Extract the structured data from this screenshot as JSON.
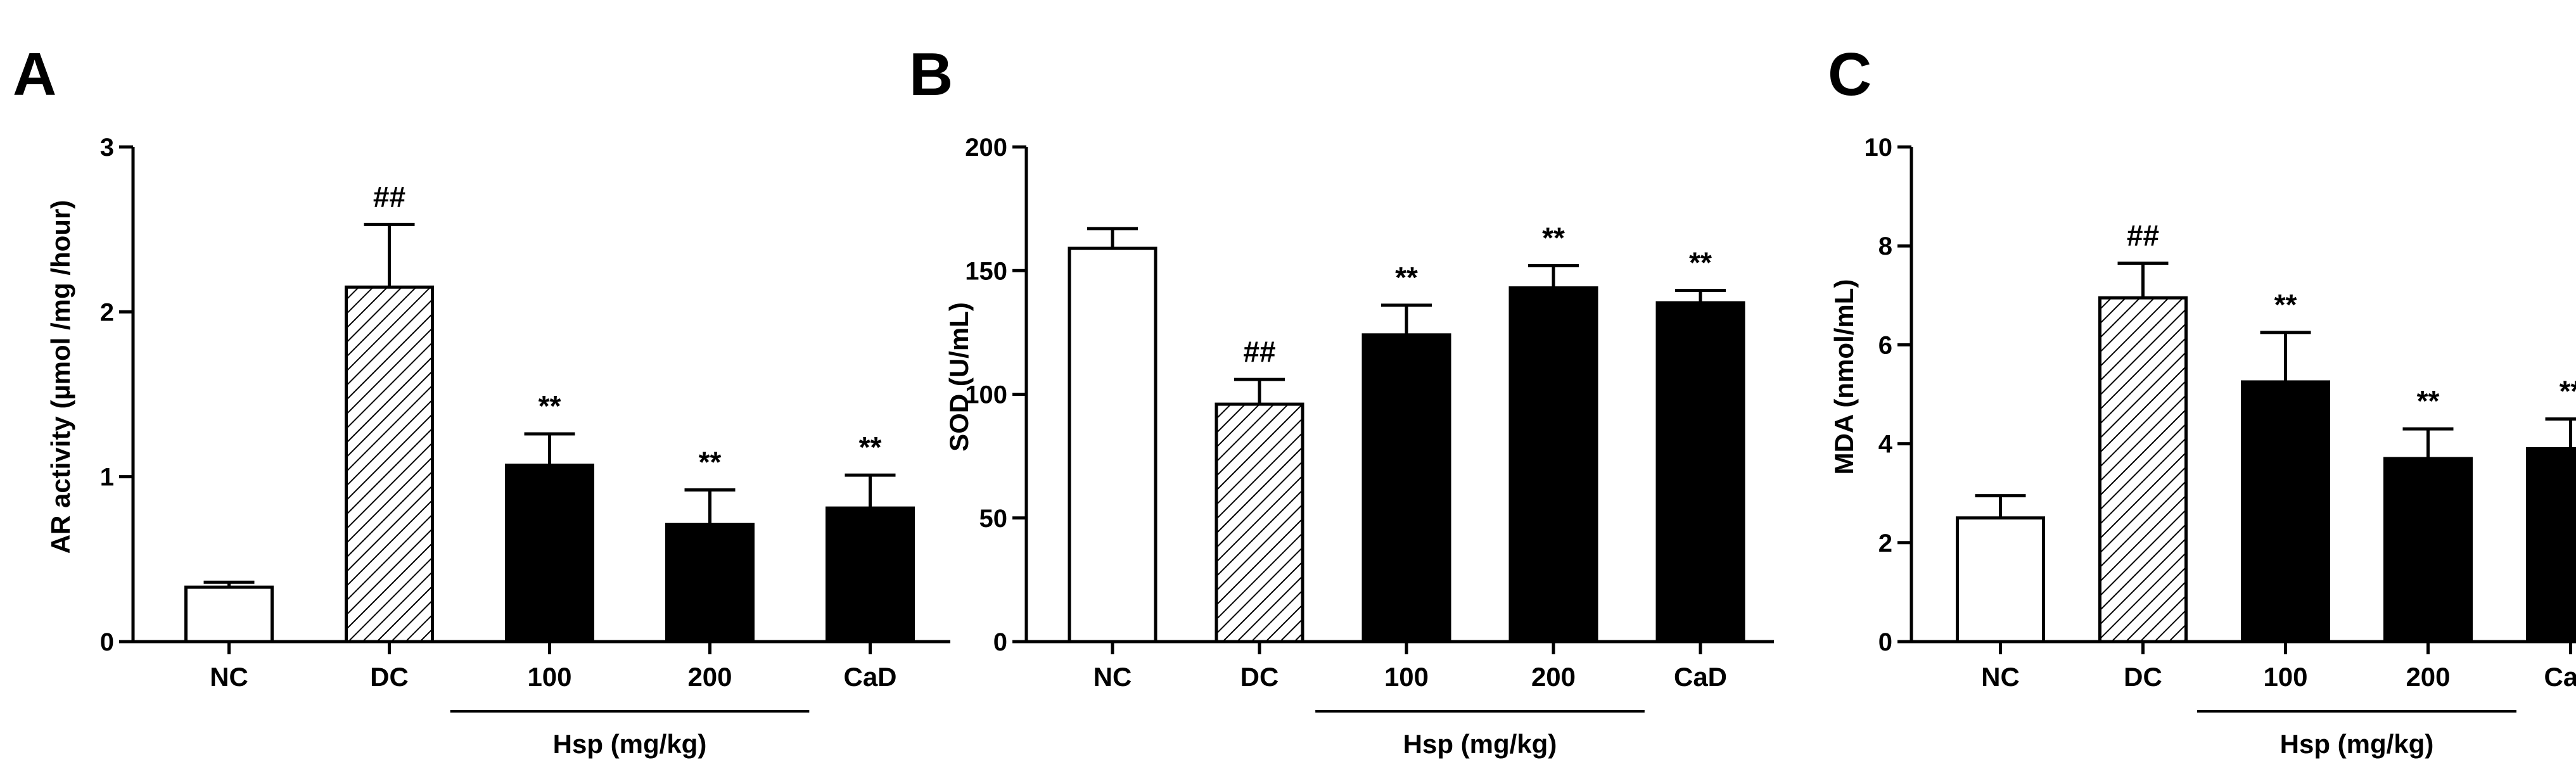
{
  "chart_data": [
    {
      "panel": "A",
      "type": "bar",
      "ylabel": "AR activity (µmol /mg /hour)",
      "ylim": [
        0,
        3
      ],
      "yticks": [
        "0",
        "1",
        "2",
        "3"
      ],
      "categories": [
        "NC",
        "DC",
        "100",
        "200",
        "CaD"
      ],
      "values": [
        0.33,
        2.15,
        1.07,
        0.71,
        0.81
      ],
      "errors": [
        0.03,
        0.38,
        0.19,
        0.21,
        0.2
      ],
      "annotations": [
        "",
        "##",
        "**",
        "**",
        "**"
      ],
      "fills": [
        "white",
        "hatched",
        "black",
        "black",
        "black"
      ],
      "group_label": "Hsp (mg/kg)",
      "group_members": [
        "100",
        "200"
      ]
    },
    {
      "panel": "B",
      "type": "bar",
      "ylabel": "SOD (U/mL)",
      "ylim": [
        0,
        200
      ],
      "yticks": [
        "0",
        "50",
        "100",
        "150",
        "200"
      ],
      "categories": [
        "NC",
        "DC",
        "100",
        "200",
        "CaD"
      ],
      "values": [
        159,
        96,
        124,
        143,
        137
      ],
      "errors": [
        8,
        10,
        12,
        9,
        5
      ],
      "annotations": [
        "",
        "##",
        "**",
        "**",
        "**"
      ],
      "fills": [
        "white",
        "hatched",
        "black",
        "black",
        "black"
      ],
      "group_label": "Hsp (mg/kg)",
      "group_members": [
        "100",
        "200"
      ]
    },
    {
      "panel": "C",
      "type": "bar",
      "ylabel": "MDA (nmol/mL)",
      "ylim": [
        0,
        10
      ],
      "yticks": [
        "0",
        "2",
        "4",
        "6",
        "8",
        "10"
      ],
      "categories": [
        "NC",
        "DC",
        "100",
        "200",
        "CaD"
      ],
      "values": [
        2.5,
        6.95,
        5.25,
        3.7,
        3.9
      ],
      "errors": [
        0.45,
        0.7,
        1.0,
        0.6,
        0.6
      ],
      "annotations": [
        "",
        "##",
        "**",
        "**",
        "**"
      ],
      "fills": [
        "white",
        "hatched",
        "black",
        "black",
        "black"
      ],
      "group_label": "Hsp (mg/kg)",
      "group_members": [
        "100",
        "200"
      ]
    }
  ]
}
